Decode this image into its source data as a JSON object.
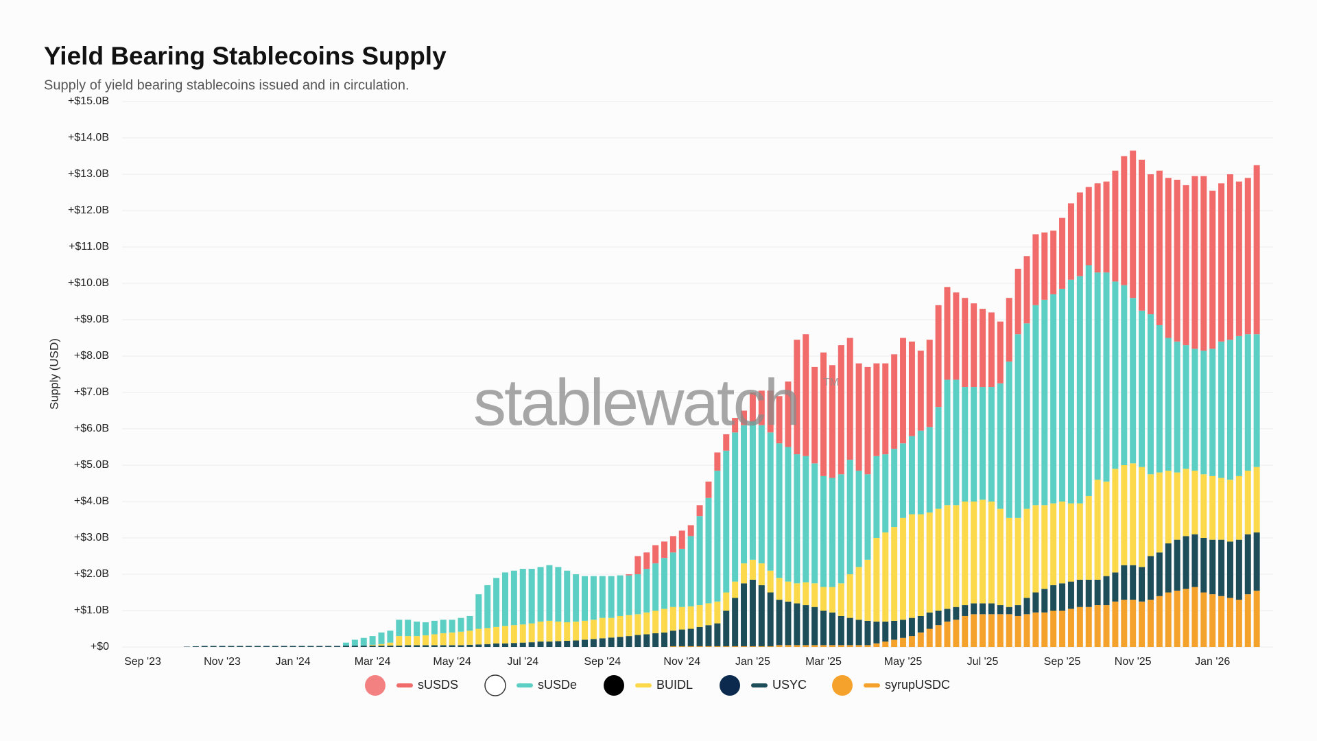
{
  "chart_data": {
    "type": "stacked-bar",
    "title": "Yield Bearing Stablecoins Supply",
    "subtitle": "Supply of yield bearing stablecoins issued and in circulation.",
    "y_axis_label": "Supply (USD)",
    "watermark": "stablewatch",
    "watermark_mark": "TM",
    "grid": true,
    "legend": "bottom",
    "ylim": [
      0,
      15
    ],
    "yticks": [
      {
        "value": 0,
        "label": "+$0"
      },
      {
        "value": 1,
        "label": "+$1.0B"
      },
      {
        "value": 2,
        "label": "+$2.0B"
      },
      {
        "value": 3,
        "label": "+$3.0B"
      },
      {
        "value": 4,
        "label": "+$4.0B"
      },
      {
        "value": 5,
        "label": "+$5.0B"
      },
      {
        "value": 6,
        "label": "+$6.0B"
      },
      {
        "value": 7,
        "label": "+$7.0B"
      },
      {
        "value": 8,
        "label": "+$8.0B"
      },
      {
        "value": 9,
        "label": "+$9.0B"
      },
      {
        "value": 10,
        "label": "+$10.0B"
      },
      {
        "value": 11,
        "label": "+$11.0B"
      },
      {
        "value": 12,
        "label": "+$12.0B"
      },
      {
        "value": 13,
        "label": "+$13.0B"
      },
      {
        "value": 14,
        "label": "+$14.0B"
      },
      {
        "value": 15,
        "label": "+$15.0B"
      }
    ],
    "categories": [
      "Sep '23",
      null,
      null,
      null,
      null,
      null,
      null,
      null,
      null,
      "Nov '23",
      null,
      null,
      null,
      null,
      null,
      null,
      null,
      "Jan '24",
      null,
      null,
      null,
      null,
      null,
      null,
      null,
      null,
      "Mar '24",
      null,
      null,
      null,
      null,
      null,
      null,
      null,
      null,
      "May '24",
      null,
      null,
      null,
      null,
      null,
      null,
      null,
      "Jul '24",
      null,
      null,
      null,
      null,
      null,
      null,
      null,
      null,
      "Sep '24",
      null,
      null,
      null,
      null,
      null,
      null,
      null,
      null,
      "Nov '24",
      null,
      null,
      null,
      null,
      null,
      null,
      null,
      "Jan '25",
      null,
      null,
      null,
      null,
      null,
      null,
      null,
      "Mar '25",
      null,
      null,
      null,
      null,
      null,
      null,
      null,
      null,
      "May '25",
      null,
      null,
      null,
      null,
      null,
      null,
      null,
      null,
      "Jul '25",
      null,
      null,
      null,
      null,
      null,
      null,
      null,
      null,
      "Sep '25",
      null,
      null,
      null,
      null,
      null,
      null,
      null,
      "Nov '25",
      null,
      null,
      null,
      null,
      null,
      null,
      null,
      null,
      "Jan '26",
      null,
      null,
      null,
      null,
      null
    ],
    "series": [
      {
        "name": "sUSDS",
        "color": "#f26b6b",
        "values": [
          0,
          0,
          0,
          0,
          0,
          0,
          0,
          0,
          0,
          0,
          0,
          0,
          0,
          0,
          0,
          0,
          0,
          0,
          0,
          0,
          0,
          0,
          0,
          0,
          0,
          0,
          0,
          0,
          0,
          0,
          0,
          0,
          0,
          0,
          0,
          0,
          0,
          0,
          0,
          0,
          0,
          0,
          0,
          0,
          0,
          0,
          0,
          0,
          0,
          0,
          0,
          0,
          0,
          0,
          0,
          0.03,
          0.5,
          0.45,
          0.5,
          0.45,
          0.45,
          0.5,
          0.3,
          0.3,
          0.45,
          0.5,
          0.45,
          0.4,
          0.4,
          0.8,
          0.95,
          1.15,
          1.3,
          1.8,
          3.15,
          3.35,
          2.65,
          3.4,
          3.1,
          3.55,
          3.35,
          2.95,
          2.95,
          2.55,
          2.5,
          2.6,
          2.9,
          2.6,
          2.2,
          2.4,
          2.8,
          2.55,
          2.4,
          2.45,
          2.3,
          2.15,
          2.05,
          1.7,
          1.75,
          1.8,
          1.85,
          1.95,
          1.85,
          1.75,
          1.95,
          2.1,
          2.3,
          2.15,
          2.45,
          2.5,
          3.05,
          3.55,
          4.05,
          4.15,
          3.85,
          4.25,
          4.4,
          4.45,
          4.4,
          4.75,
          4.8,
          4.35,
          4.35,
          4.55,
          4.25,
          4.3,
          4.65
        ]
      },
      {
        "name": "sUSDe",
        "color": "#5ccfc4",
        "values": [
          0,
          0,
          0,
          0,
          0,
          0,
          0,
          0,
          0,
          0,
          0,
          0,
          0,
          0,
          0,
          0,
          0,
          0,
          0,
          0,
          0,
          0,
          0,
          0.08,
          0.16,
          0.21,
          0.24,
          0.32,
          0.33,
          0.45,
          0.45,
          0.4,
          0.36,
          0.37,
          0.37,
          0.35,
          0.38,
          0.4,
          0.95,
          1.18,
          1.35,
          1.47,
          1.5,
          1.53,
          1.5,
          1.5,
          1.53,
          1.5,
          1.42,
          1.3,
          1.23,
          1.2,
          1.15,
          1.15,
          1.12,
          1.09,
          1.1,
          1.2,
          1.3,
          1.4,
          1.5,
          1.6,
          1.93,
          2.45,
          2.9,
          3.6,
          3.9,
          4.1,
          3.8,
          3.8,
          3.8,
          3.8,
          3.7,
          3.7,
          3.55,
          3.47,
          3.3,
          3.05,
          3.0,
          3.0,
          3.15,
          2.65,
          2.35,
          2.25,
          2.15,
          2.15,
          2.05,
          2.15,
          2.3,
          2.35,
          2.8,
          3.45,
          3.45,
          3.15,
          3.15,
          3.1,
          3.15,
          3.45,
          4.3,
          5.05,
          5.1,
          5.5,
          5.65,
          5.75,
          5.85,
          6.15,
          6.25,
          6.35,
          5.7,
          5.75,
          5.15,
          4.95,
          4.55,
          4.3,
          4.4,
          4.05,
          3.65,
          3.6,
          3.4,
          3.35,
          3.4,
          3.5,
          3.75,
          3.85,
          3.85,
          3.75,
          3.65
        ]
      },
      {
        "name": "BUIDL",
        "color": "#fcd94a",
        "values": [
          0,
          0,
          0,
          0,
          0,
          0,
          0,
          0,
          0,
          0,
          0,
          0,
          0,
          0,
          0,
          0,
          0,
          0,
          0,
          0,
          0,
          0,
          0,
          0,
          0,
          0,
          0.02,
          0.04,
          0.08,
          0.26,
          0.25,
          0.25,
          0.27,
          0.3,
          0.33,
          0.35,
          0.37,
          0.39,
          0.43,
          0.44,
          0.45,
          0.48,
          0.49,
          0.5,
          0.52,
          0.55,
          0.57,
          0.54,
          0.51,
          0.52,
          0.52,
          0.53,
          0.56,
          0.54,
          0.57,
          0.58,
          0.57,
          0.6,
          0.62,
          0.65,
          0.65,
          0.62,
          0.62,
          0.6,
          0.6,
          0.6,
          0.5,
          0.45,
          0.55,
          0.55,
          0.6,
          0.6,
          0.6,
          0.55,
          0.55,
          0.63,
          0.65,
          0.65,
          0.7,
          0.9,
          1.2,
          1.45,
          1.68,
          2.3,
          2.45,
          2.58,
          2.8,
          2.85,
          2.8,
          2.75,
          2.8,
          2.85,
          2.8,
          2.85,
          2.8,
          2.85,
          2.8,
          2.65,
          2.45,
          2.4,
          2.45,
          2.4,
          2.3,
          2.25,
          2.25,
          2.15,
          2.1,
          2.3,
          2.75,
          2.6,
          2.85,
          2.75,
          2.8,
          2.75,
          2.25,
          2.2,
          2.0,
          1.85,
          1.85,
          1.75,
          1.75,
          1.75,
          1.7,
          1.7,
          1.75,
          1.75,
          1.8
        ]
      },
      {
        "name": "USYC",
        "color": "#1e4d5a",
        "values": [
          0,
          0,
          0,
          0,
          0,
          0.01,
          0.02,
          0.03,
          0.03,
          0.03,
          0.03,
          0.03,
          0.03,
          0.03,
          0.03,
          0.03,
          0.03,
          0.03,
          0.03,
          0.03,
          0.03,
          0.03,
          0.03,
          0.04,
          0.04,
          0.04,
          0.04,
          0.04,
          0.04,
          0.04,
          0.05,
          0.05,
          0.05,
          0.05,
          0.05,
          0.05,
          0.05,
          0.06,
          0.07,
          0.08,
          0.1,
          0.1,
          0.11,
          0.12,
          0.13,
          0.15,
          0.15,
          0.16,
          0.17,
          0.18,
          0.2,
          0.22,
          0.24,
          0.26,
          0.28,
          0.3,
          0.33,
          0.35,
          0.38,
          0.4,
          0.43,
          0.46,
          0.48,
          0.53,
          0.58,
          0.63,
          0.98,
          1.33,
          1.73,
          1.83,
          1.68,
          1.48,
          1.25,
          1.2,
          1.15,
          1.1,
          1.05,
          0.95,
          0.9,
          0.8,
          0.75,
          0.7,
          0.67,
          0.6,
          0.55,
          0.52,
          0.5,
          0.5,
          0.45,
          0.45,
          0.4,
          0.35,
          0.35,
          0.3,
          0.3,
          0.3,
          0.3,
          0.25,
          0.2,
          0.3,
          0.45,
          0.55,
          0.65,
          0.7,
          0.75,
          0.75,
          0.75,
          0.75,
          0.7,
          0.8,
          0.8,
          0.95,
          0.95,
          0.95,
          1.2,
          1.2,
          1.35,
          1.4,
          1.45,
          1.45,
          1.5,
          1.5,
          1.55,
          1.55,
          1.65,
          1.65,
          1.6
        ]
      },
      {
        "name": "syrupUSDC",
        "color": "#f5a22d",
        "values": [
          0,
          0,
          0,
          0,
          0,
          0,
          0,
          0,
          0,
          0,
          0,
          0,
          0,
          0,
          0,
          0,
          0,
          0,
          0,
          0,
          0,
          0,
          0,
          0,
          0,
          0,
          0,
          0,
          0,
          0,
          0,
          0,
          0,
          0,
          0,
          0,
          0,
          0,
          0,
          0,
          0,
          0,
          0,
          0,
          0,
          0,
          0,
          0,
          0,
          0,
          0,
          0,
          0,
          0,
          0,
          0,
          0,
          0,
          0,
          0,
          0.02,
          0.02,
          0.02,
          0.02,
          0.02,
          0.02,
          0.02,
          0.02,
          0.02,
          0.02,
          0.02,
          0.02,
          0.05,
          0.05,
          0.05,
          0.05,
          0.05,
          0.05,
          0.05,
          0.05,
          0.05,
          0.05,
          0.05,
          0.1,
          0.15,
          0.2,
          0.25,
          0.3,
          0.4,
          0.5,
          0.6,
          0.7,
          0.75,
          0.85,
          0.9,
          0.9,
          0.9,
          0.9,
          0.9,
          0.85,
          0.9,
          0.95,
          0.95,
          1,
          1,
          1.05,
          1.1,
          1.1,
          1.15,
          1.15,
          1.25,
          1.3,
          1.3,
          1.25,
          1.3,
          1.4,
          1.5,
          1.55,
          1.6,
          1.65,
          1.5,
          1.45,
          1.4,
          1.35,
          1.3,
          1.45,
          1.55
        ]
      }
    ]
  }
}
